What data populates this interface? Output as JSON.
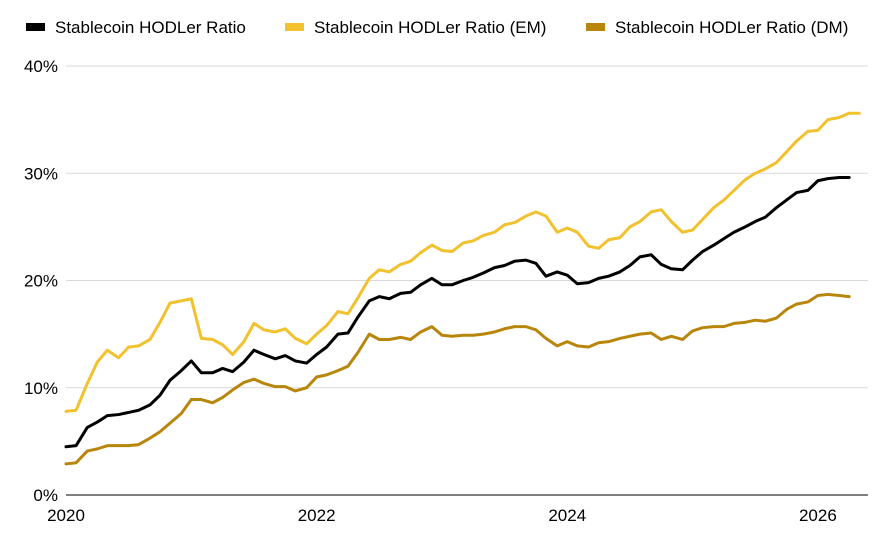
{
  "chart_data": {
    "type": "line",
    "title": "",
    "xlabel": "",
    "ylabel": "",
    "xlim": [
      2020,
      2026.4
    ],
    "ylim": [
      0,
      40
    ],
    "x_ticks": [
      2020,
      2022,
      2024,
      2026
    ],
    "x_tick_labels": [
      "2020",
      "2022",
      "2024",
      "2026"
    ],
    "y_ticks": [
      0,
      10,
      20,
      30,
      40
    ],
    "y_tick_labels": [
      "0%",
      "10%",
      "20%",
      "30%",
      "40%"
    ],
    "grid": "horizontal",
    "legend": "top",
    "series": [
      {
        "name": "Stablecoin HODLer Ratio",
        "color": "#000000",
        "points": [
          [
            2020.0,
            4.5
          ],
          [
            2020.08,
            4.6
          ],
          [
            2020.17,
            6.3
          ],
          [
            2020.25,
            6.8
          ],
          [
            2020.33,
            7.4
          ],
          [
            2020.42,
            7.5
          ],
          [
            2020.5,
            7.7
          ],
          [
            2020.58,
            7.9
          ],
          [
            2020.67,
            8.4
          ],
          [
            2020.75,
            9.3
          ],
          [
            2020.83,
            10.7
          ],
          [
            2020.92,
            11.6
          ],
          [
            2021.0,
            12.5
          ],
          [
            2021.08,
            11.4
          ],
          [
            2021.17,
            11.4
          ],
          [
            2021.25,
            11.8
          ],
          [
            2021.33,
            11.5
          ],
          [
            2021.42,
            12.4
          ],
          [
            2021.5,
            13.5
          ],
          [
            2021.58,
            13.1
          ],
          [
            2021.67,
            12.7
          ],
          [
            2021.75,
            13.0
          ],
          [
            2021.83,
            12.5
          ],
          [
            2021.92,
            12.3
          ],
          [
            2022.0,
            13.1
          ],
          [
            2022.08,
            13.8
          ],
          [
            2022.17,
            15.0
          ],
          [
            2022.25,
            15.1
          ],
          [
            2022.33,
            16.6
          ],
          [
            2022.42,
            18.1
          ],
          [
            2022.5,
            18.5
          ],
          [
            2022.58,
            18.3
          ],
          [
            2022.67,
            18.8
          ],
          [
            2022.75,
            18.9
          ],
          [
            2022.83,
            19.6
          ],
          [
            2022.92,
            20.2
          ],
          [
            2023.0,
            19.6
          ],
          [
            2023.08,
            19.6
          ],
          [
            2023.17,
            20.0
          ],
          [
            2023.25,
            20.3
          ],
          [
            2023.33,
            20.7
          ],
          [
            2023.42,
            21.2
          ],
          [
            2023.5,
            21.4
          ],
          [
            2023.58,
            21.8
          ],
          [
            2023.67,
            21.9
          ],
          [
            2023.75,
            21.6
          ],
          [
            2023.83,
            20.4
          ],
          [
            2023.92,
            20.8
          ],
          [
            2024.0,
            20.5
          ],
          [
            2024.08,
            19.7
          ],
          [
            2024.17,
            19.8
          ],
          [
            2024.25,
            20.2
          ],
          [
            2024.33,
            20.4
          ],
          [
            2024.42,
            20.8
          ],
          [
            2024.5,
            21.4
          ],
          [
            2024.58,
            22.2
          ],
          [
            2024.67,
            22.4
          ],
          [
            2024.75,
            21.5
          ],
          [
            2024.83,
            21.1
          ],
          [
            2024.92,
            21.0
          ],
          [
            2025.0,
            21.9
          ],
          [
            2025.08,
            22.7
          ],
          [
            2025.17,
            23.3
          ],
          [
            2025.25,
            23.9
          ],
          [
            2025.33,
            24.5
          ],
          [
            2025.42,
            25.0
          ],
          [
            2025.5,
            25.5
          ],
          [
            2025.58,
            25.9
          ],
          [
            2025.67,
            26.8
          ],
          [
            2025.75,
            27.5
          ],
          [
            2025.83,
            28.2
          ],
          [
            2025.92,
            28.4
          ],
          [
            2026.0,
            29.3
          ],
          [
            2026.08,
            29.5
          ],
          [
            2026.17,
            29.6
          ],
          [
            2026.25,
            29.6
          ]
        ]
      },
      {
        "name": "Stablecoin HODLer Ratio (EM)",
        "color": "#f2c12e",
        "points": [
          [
            2020.0,
            7.8
          ],
          [
            2020.08,
            7.9
          ],
          [
            2020.17,
            10.4
          ],
          [
            2020.25,
            12.4
          ],
          [
            2020.33,
            13.5
          ],
          [
            2020.42,
            12.8
          ],
          [
            2020.5,
            13.8
          ],
          [
            2020.58,
            13.9
          ],
          [
            2020.67,
            14.5
          ],
          [
            2020.75,
            16.1
          ],
          [
            2020.83,
            17.9
          ],
          [
            2020.92,
            18.1
          ],
          [
            2021.0,
            18.3
          ],
          [
            2021.08,
            14.6
          ],
          [
            2021.17,
            14.5
          ],
          [
            2021.25,
            14.0
          ],
          [
            2021.33,
            13.1
          ],
          [
            2021.42,
            14.3
          ],
          [
            2021.5,
            16.0
          ],
          [
            2021.58,
            15.4
          ],
          [
            2021.67,
            15.2
          ],
          [
            2021.75,
            15.5
          ],
          [
            2021.83,
            14.6
          ],
          [
            2021.92,
            14.1
          ],
          [
            2022.0,
            15.0
          ],
          [
            2022.08,
            15.8
          ],
          [
            2022.17,
            17.1
          ],
          [
            2022.25,
            16.9
          ],
          [
            2022.33,
            18.4
          ],
          [
            2022.42,
            20.2
          ],
          [
            2022.5,
            21.0
          ],
          [
            2022.58,
            20.8
          ],
          [
            2022.67,
            21.5
          ],
          [
            2022.75,
            21.8
          ],
          [
            2022.83,
            22.6
          ],
          [
            2022.92,
            23.3
          ],
          [
            2023.0,
            22.8
          ],
          [
            2023.08,
            22.7
          ],
          [
            2023.17,
            23.5
          ],
          [
            2023.25,
            23.7
          ],
          [
            2023.33,
            24.2
          ],
          [
            2023.42,
            24.5
          ],
          [
            2023.5,
            25.2
          ],
          [
            2023.58,
            25.4
          ],
          [
            2023.67,
            26.0
          ],
          [
            2023.75,
            26.4
          ],
          [
            2023.83,
            26.0
          ],
          [
            2023.92,
            24.5
          ],
          [
            2024.0,
            24.9
          ],
          [
            2024.08,
            24.5
          ],
          [
            2024.17,
            23.2
          ],
          [
            2024.25,
            23.0
          ],
          [
            2024.33,
            23.8
          ],
          [
            2024.42,
            24.0
          ],
          [
            2024.5,
            25.0
          ],
          [
            2024.58,
            25.5
          ],
          [
            2024.67,
            26.4
          ],
          [
            2024.75,
            26.6
          ],
          [
            2024.83,
            25.5
          ],
          [
            2024.92,
            24.5
          ],
          [
            2025.0,
            24.7
          ],
          [
            2025.08,
            25.7
          ],
          [
            2025.17,
            26.8
          ],
          [
            2025.25,
            27.5
          ],
          [
            2025.33,
            28.4
          ],
          [
            2025.42,
            29.4
          ],
          [
            2025.5,
            30.0
          ],
          [
            2025.58,
            30.4
          ],
          [
            2025.67,
            31.0
          ],
          [
            2025.75,
            32.0
          ],
          [
            2025.83,
            33.0
          ],
          [
            2025.92,
            33.9
          ],
          [
            2026.0,
            34.0
          ],
          [
            2026.08,
            35.0
          ],
          [
            2026.17,
            35.2
          ],
          [
            2026.25,
            35.6
          ],
          [
            2026.33,
            35.6
          ]
        ]
      },
      {
        "name": "Stablecoin HODLer Ratio (DM)",
        "color": "#b8860b",
        "points": [
          [
            2020.0,
            2.9
          ],
          [
            2020.08,
            3.0
          ],
          [
            2020.17,
            4.1
          ],
          [
            2020.25,
            4.3
          ],
          [
            2020.33,
            4.6
          ],
          [
            2020.42,
            4.6
          ],
          [
            2020.5,
            4.6
          ],
          [
            2020.58,
            4.7
          ],
          [
            2020.67,
            5.3
          ],
          [
            2020.75,
            5.9
          ],
          [
            2020.83,
            6.7
          ],
          [
            2020.92,
            7.6
          ],
          [
            2021.0,
            8.9
          ],
          [
            2021.08,
            8.9
          ],
          [
            2021.17,
            8.6
          ],
          [
            2021.25,
            9.1
          ],
          [
            2021.33,
            9.8
          ],
          [
            2021.42,
            10.5
          ],
          [
            2021.5,
            10.8
          ],
          [
            2021.58,
            10.4
          ],
          [
            2021.67,
            10.1
          ],
          [
            2021.75,
            10.1
          ],
          [
            2021.83,
            9.7
          ],
          [
            2021.92,
            10.0
          ],
          [
            2022.0,
            11.0
          ],
          [
            2022.08,
            11.2
          ],
          [
            2022.17,
            11.6
          ],
          [
            2022.25,
            12.0
          ],
          [
            2022.33,
            13.3
          ],
          [
            2022.42,
            15.0
          ],
          [
            2022.5,
            14.5
          ],
          [
            2022.58,
            14.5
          ],
          [
            2022.67,
            14.7
          ],
          [
            2022.75,
            14.5
          ],
          [
            2022.83,
            15.2
          ],
          [
            2022.92,
            15.7
          ],
          [
            2023.0,
            14.9
          ],
          [
            2023.08,
            14.8
          ],
          [
            2023.17,
            14.9
          ],
          [
            2023.25,
            14.9
          ],
          [
            2023.33,
            15.0
          ],
          [
            2023.42,
            15.2
          ],
          [
            2023.5,
            15.5
          ],
          [
            2023.58,
            15.7
          ],
          [
            2023.67,
            15.7
          ],
          [
            2023.75,
            15.4
          ],
          [
            2023.83,
            14.6
          ],
          [
            2023.92,
            13.9
          ],
          [
            2024.0,
            14.3
          ],
          [
            2024.08,
            13.9
          ],
          [
            2024.17,
            13.8
          ],
          [
            2024.25,
            14.2
          ],
          [
            2024.33,
            14.3
          ],
          [
            2024.42,
            14.6
          ],
          [
            2024.5,
            14.8
          ],
          [
            2024.58,
            15.0
          ],
          [
            2024.67,
            15.1
          ],
          [
            2024.75,
            14.5
          ],
          [
            2024.83,
            14.8
          ],
          [
            2024.92,
            14.5
          ],
          [
            2025.0,
            15.3
          ],
          [
            2025.08,
            15.6
          ],
          [
            2025.17,
            15.7
          ],
          [
            2025.25,
            15.7
          ],
          [
            2025.33,
            16.0
          ],
          [
            2025.42,
            16.1
          ],
          [
            2025.5,
            16.3
          ],
          [
            2025.58,
            16.2
          ],
          [
            2025.67,
            16.5
          ],
          [
            2025.75,
            17.3
          ],
          [
            2025.83,
            17.8
          ],
          [
            2025.92,
            18.0
          ],
          [
            2026.0,
            18.6
          ],
          [
            2026.08,
            18.7
          ],
          [
            2026.17,
            18.6
          ],
          [
            2026.25,
            18.5
          ]
        ]
      }
    ]
  }
}
